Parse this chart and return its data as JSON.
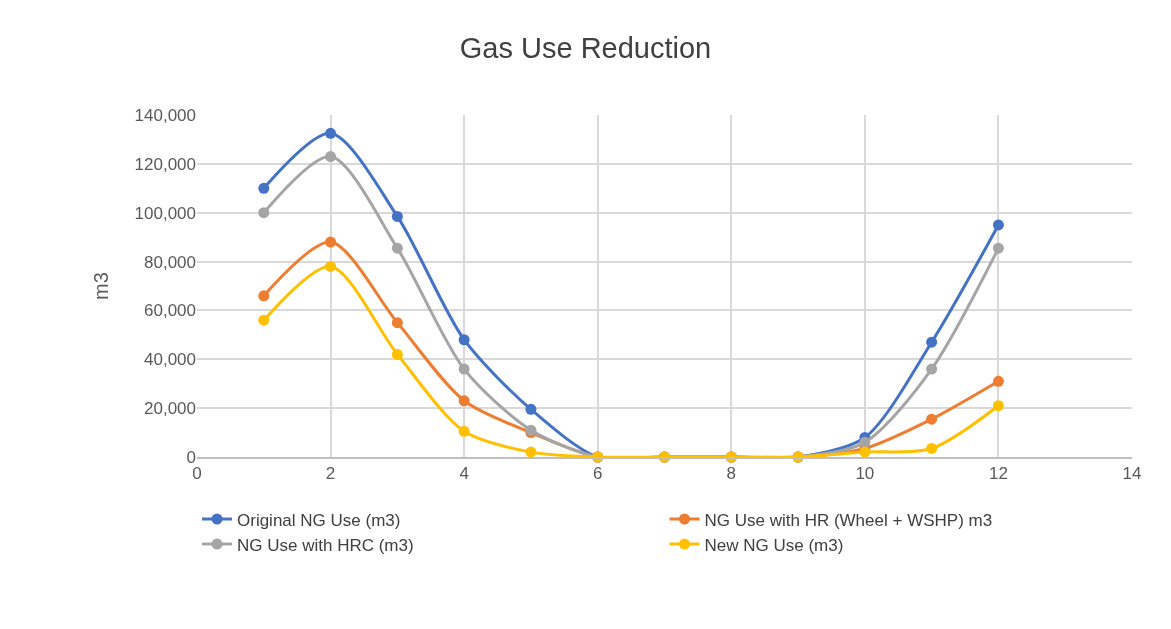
{
  "chart_data": {
    "type": "line",
    "title": "Gas Use Reduction",
    "ylabel": "m3",
    "x": [
      1,
      2,
      3,
      4,
      5,
      6,
      7,
      8,
      9,
      10,
      11,
      12
    ],
    "series": [
      {
        "name": "Original NG Use (m3)",
        "color": "#4472c4",
        "values": [
          110000,
          132500,
          98500,
          48000,
          19500,
          0,
          0,
          0,
          0,
          8000,
          47000,
          95000
        ]
      },
      {
        "name": "NG Use with HR (Wheel + WSHP) m3",
        "color": "#ed7d31",
        "values": [
          66000,
          88000,
          55000,
          23000,
          10000,
          0,
          0,
          0,
          0,
          3500,
          15500,
          31000
        ]
      },
      {
        "name": "NG Use with HRC (m3)",
        "color": "#a5a5a5",
        "values": [
          100000,
          123000,
          85500,
          36000,
          11000,
          0,
          0,
          0,
          0,
          6000,
          36000,
          85500
        ]
      },
      {
        "name": "New NG Use (m3)",
        "color": "#ffc000",
        "values": [
          56000,
          78000,
          42000,
          10500,
          2000,
          0,
          0,
          0,
          0,
          2000,
          3500,
          21000
        ]
      }
    ],
    "xlim": [
      0,
      14
    ],
    "xticks": [
      0,
      2,
      4,
      6,
      8,
      10,
      12,
      14
    ],
    "ylim": [
      0,
      140000
    ],
    "yticks": [
      {
        "value": 0,
        "label": "0"
      },
      {
        "value": 20000,
        "label": "20,000"
      },
      {
        "value": 40000,
        "label": "40,000"
      },
      {
        "value": 60000,
        "label": "60,000"
      },
      {
        "value": 80000,
        "label": "80,000"
      },
      {
        "value": 100000,
        "label": "100,000"
      },
      {
        "value": 120000,
        "label": "120,000"
      },
      {
        "value": 140000,
        "label": "140,000"
      }
    ],
    "grid": true,
    "legend": "bottom",
    "marker": "circle",
    "line_style": "solid"
  }
}
